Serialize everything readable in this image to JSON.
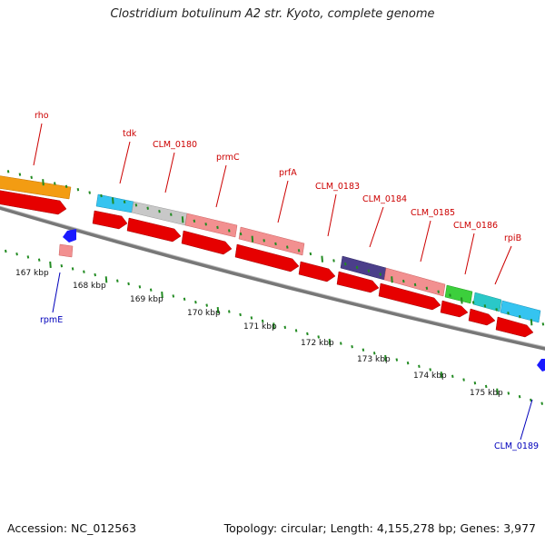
{
  "map": {
    "title": "Clostridium botulinum A2 str. Kyoto, complete genome",
    "accession_label": "Accession: NC_012563",
    "summary_label": "Topology: circular; Length: 4,155,278 bp; Genes: 3,977",
    "top_genes": [
      {
        "label": "rho",
        "color": "#f39c12"
      },
      {
        "label": "tdk",
        "color": "#35c4f0"
      },
      {
        "label": "CLM_0180",
        "color": "#c8c8c8"
      },
      {
        "label": "prmC",
        "color": "#f29090"
      },
      {
        "label": "prfA",
        "color": "#f29090"
      },
      {
        "label": "CLM_0183",
        "color": "#4b3f8a"
      },
      {
        "label": "CLM_0184",
        "color": "#f29090"
      },
      {
        "label": "CLM_0185",
        "color": "#3ccf3c"
      },
      {
        "label": "CLM_0186",
        "color": "#2ac8c8"
      },
      {
        "label": "rpiB",
        "color": "#35c4f0"
      }
    ],
    "bottom_genes": [
      {
        "label": "rpmE",
        "color": "#f29090"
      },
      {
        "label": "CLM_0189",
        "color": "#1a1aff"
      }
    ],
    "scale_ticks": [
      "167 kbp",
      "168 kbp",
      "169 kbp",
      "170 kbp",
      "171 kbp",
      "172 kbp",
      "173 kbp",
      "174 kbp",
      "175 kbp"
    ],
    "colors": {
      "top_label": "#cc0000",
      "bottom_label": "#0000bb",
      "cds_red": "#e60000",
      "backbone": "#777777",
      "tick_green": "#228b22"
    }
  }
}
